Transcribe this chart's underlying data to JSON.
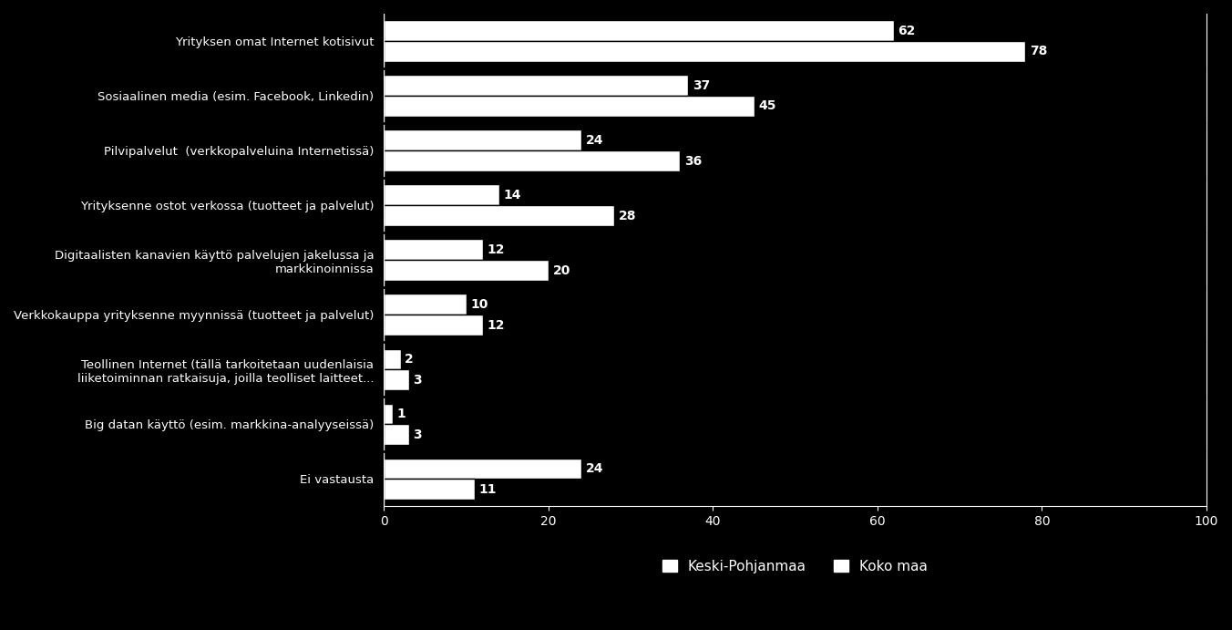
{
  "categories": [
    "Yrityksen omat Internet kotisivut",
    "Sosiaalinen media (esim. Facebook, Linkedin)",
    "Pilvipalvelut  (verkkopalveluina Internetissä)",
    "Yrityksenne ostot verkossa (tuotteet ja palvelut)",
    "Digitaalisten kanavien käyttö palvelujen jakelussa ja\nmarkkinoinnissa",
    "Verkkokauppa yrityksenne myynnissä (tuotteet ja palvelut)",
    "Teollinen Internet (tällä tarkoitetaan uudenlaisia\nliiketoiminnan ratkaisuja, joilla teolliset laitteet...",
    "Big datan käyttö (esim. markkina-analyyseissä)",
    "Ei vastausta"
  ],
  "keski_pohjanmaa": [
    62,
    37,
    24,
    14,
    12,
    10,
    2,
    1,
    24
  ],
  "koko_maa": [
    78,
    45,
    36,
    28,
    20,
    12,
    3,
    3,
    11
  ],
  "bar_color_kp": "#ffffff",
  "bar_color_km": "#ffffff",
  "background_color": "#000000",
  "text_color": "#ffffff",
  "axis_color": "#ffffff",
  "xlim": [
    0,
    100
  ],
  "xticks": [
    0,
    20,
    40,
    60,
    80,
    100
  ],
  "legend_kp": "Keski-Pohjanmaa",
  "legend_km": "Koko maa",
  "bar_height": 0.38,
  "label_fontsize": 9.5,
  "tick_fontsize": 10,
  "legend_fontsize": 11,
  "value_fontsize": 10
}
